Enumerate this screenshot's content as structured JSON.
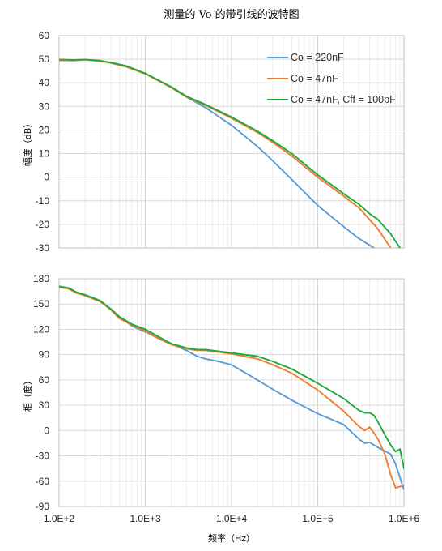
{
  "figure": {
    "title": "测量的 Vo 的带引线的波特图",
    "xlabel": "频率（Hz）",
    "colors": {
      "co220": "#5B9BD5",
      "co47": "#ED7D31",
      "cff": "#1DAA3C"
    }
  },
  "chart_data": [
    {
      "type": "line",
      "ylabel": "幅度（dB）",
      "xscale": "log",
      "xlim": [
        100,
        1000000
      ],
      "ylim": [
        -30,
        60
      ],
      "yticks": [
        60,
        50,
        40,
        30,
        20,
        10,
        0,
        -10,
        -20,
        -30
      ],
      "xticks": [
        100,
        1000,
        10000,
        100000,
        1000000
      ],
      "xtick_labels": [
        "1.0E+2",
        "1.0E+3",
        "1.0E+4",
        "1.0E+5",
        "1.0E+6"
      ],
      "grid": true,
      "legend": "top-right",
      "series": [
        {
          "name": "Co = 220nF",
          "color": "#5B9BD5",
          "x": [
            100,
            150,
            200,
            300,
            400,
            600,
            1000,
            2000,
            3000,
            5000,
            10000,
            20000,
            30000,
            50000,
            100000,
            200000,
            300000,
            450000
          ],
          "y": [
            49.8,
            49.6,
            49.8,
            49.2,
            48.5,
            47,
            44,
            38,
            34,
            29.5,
            22,
            13,
            7,
            -1,
            -12,
            -21,
            -26,
            -30
          ]
        },
        {
          "name": "Co = 47nF",
          "color": "#ED7D31",
          "x": [
            100,
            150,
            200,
            300,
            400,
            600,
            1000,
            2000,
            3000,
            5000,
            10000,
            20000,
            30000,
            50000,
            100000,
            200000,
            300000,
            400000,
            500000,
            700000
          ],
          "y": [
            49.5,
            49.4,
            49.8,
            49.2,
            48.4,
            46.8,
            43.8,
            38,
            34,
            30.5,
            25,
            19,
            14.8,
            9,
            0,
            -8,
            -13,
            -18,
            -22,
            -30
          ]
        },
        {
          "name": "Co = 47nF, Cff = 100pF",
          "color": "#1DAA3C",
          "x": [
            100,
            150,
            200,
            300,
            400,
            600,
            1000,
            2000,
            3000,
            5000,
            10000,
            20000,
            30000,
            50000,
            100000,
            200000,
            300000,
            400000,
            500000,
            700000,
            900000
          ],
          "y": [
            49.9,
            49.7,
            49.9,
            49.4,
            48.6,
            47.2,
            44,
            38.3,
            34.3,
            30.8,
            25.5,
            19.5,
            15.5,
            10,
            1,
            -7,
            -11.5,
            -15.5,
            -18,
            -24,
            -30
          ]
        }
      ]
    },
    {
      "type": "line",
      "ylabel": "相（度）",
      "xscale": "log",
      "xlim": [
        100,
        1000000
      ],
      "ylim": [
        -90,
        180
      ],
      "yticks": [
        180,
        150,
        120,
        90,
        60,
        30,
        0,
        -30,
        -60,
        -90
      ],
      "xticks": [
        100,
        1000,
        10000,
        100000,
        1000000
      ],
      "xtick_labels": [
        "1.0E+2",
        "1.0E+3",
        "1.0E+4",
        "1.0E+5",
        "1.0E+6"
      ],
      "grid": true,
      "series": [
        {
          "name": "Co = 220nF",
          "color": "#5B9BD5",
          "x": [
            100,
            130,
            160,
            200,
            300,
            400,
            500,
            700,
            1000,
            1500,
            2000,
            3000,
            4000,
            5000,
            7000,
            10000,
            20000,
            30000,
            50000,
            100000,
            200000,
            300000,
            350000,
            400000,
            500000,
            700000,
            800000,
            1000000
          ],
          "y": [
            170,
            168,
            163,
            160,
            153,
            144,
            135,
            124,
            117,
            108,
            103,
            95,
            88,
            85,
            82,
            78,
            60,
            49,
            36,
            20,
            7,
            -10,
            -15,
            -14,
            -20,
            -28,
            -40,
            -70
          ]
        },
        {
          "name": "Co = 47nF",
          "color": "#ED7D31",
          "x": [
            100,
            130,
            160,
            200,
            300,
            400,
            500,
            700,
            1000,
            1500,
            2000,
            3000,
            4000,
            5000,
            7000,
            10000,
            20000,
            30000,
            50000,
            100000,
            200000,
            300000,
            350000,
            400000,
            450000,
            500000,
            600000,
            700000,
            800000,
            1000000
          ],
          "y": [
            170,
            168,
            163,
            160,
            153,
            143,
            133,
            125,
            118,
            108,
            102,
            97,
            95,
            95,
            93,
            91,
            85,
            78,
            68,
            48,
            23,
            5,
            0,
            4,
            -3,
            -10,
            -28,
            -52,
            -68,
            -65
          ]
        },
        {
          "name": "Co = 47nF, Cff = 100pF",
          "color": "#1DAA3C",
          "x": [
            100,
            130,
            160,
            200,
            300,
            400,
            500,
            700,
            1000,
            1500,
            2000,
            3000,
            4000,
            5000,
            7000,
            10000,
            20000,
            30000,
            50000,
            100000,
            200000,
            300000,
            350000,
            400000,
            450000,
            500000,
            600000,
            700000,
            800000,
            900000,
            1000000
          ],
          "y": [
            171,
            169,
            164,
            161,
            154,
            144,
            135,
            126,
            120,
            110,
            103,
            98,
            96,
            96,
            94,
            92,
            88,
            82,
            73,
            56,
            38,
            24,
            21,
            21,
            18,
            10,
            -5,
            -17,
            -25,
            -22,
            -45
          ]
        }
      ]
    }
  ]
}
